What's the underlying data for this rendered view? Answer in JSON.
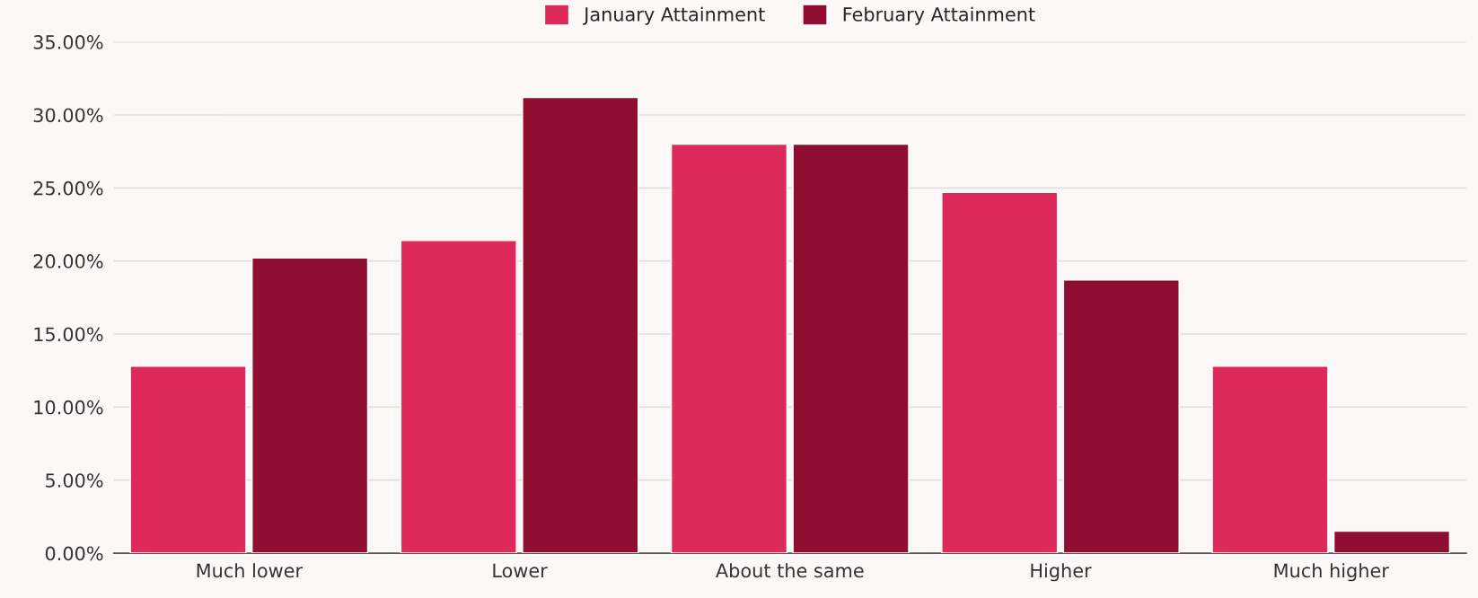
{
  "chart_data": {
    "type": "bar",
    "categories": [
      "Much lower",
      "Lower",
      "About the same",
      "Higher",
      "Much higher"
    ],
    "series": [
      {
        "name": "January Attainment",
        "color": "#de295b",
        "values": [
          12.8,
          21.4,
          28.0,
          24.7,
          12.8
        ]
      },
      {
        "name": "February Attainment",
        "color": "#8e0d30",
        "values": [
          20.2,
          31.2,
          28.0,
          18.7,
          1.5
        ]
      }
    ],
    "ylim": [
      0,
      35
    ],
    "yticks": [
      {
        "value": 0,
        "label": "0.00%"
      },
      {
        "value": 5,
        "label": "5.00%"
      },
      {
        "value": 10,
        "label": "10.00%"
      },
      {
        "value": 15,
        "label": "15.00%"
      },
      {
        "value": 20,
        "label": "20.00%"
      },
      {
        "value": 25,
        "label": "25.00%"
      },
      {
        "value": 30,
        "label": "30.00%"
      },
      {
        "value": 35,
        "label": "35.00%"
      }
    ],
    "grid": "y",
    "legend": "top"
  }
}
